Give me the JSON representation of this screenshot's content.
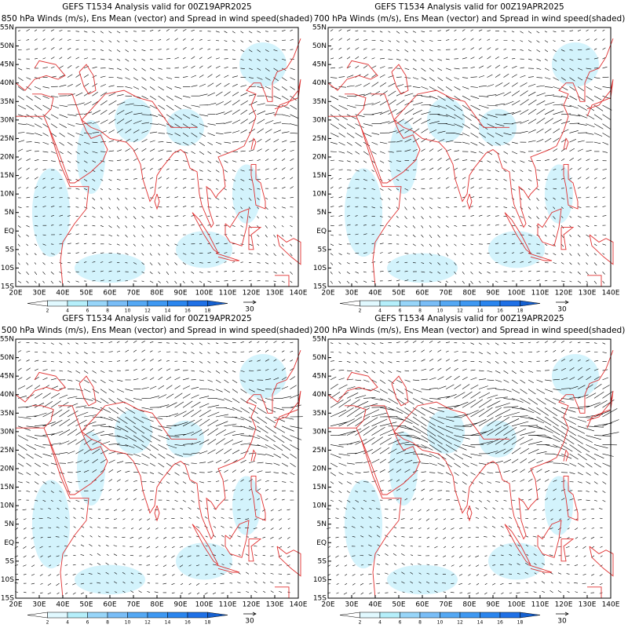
{
  "panels": [
    {
      "title": "GEFS T1534 Analysis valid for 00Z19APR2025",
      "subtitle": "850 hPa Winds (m/s), Ens Mean (vector) and Spread in wind speed(shaded)"
    },
    {
      "title": "GEFS T1534 Analysis valid for 00Z19APR2025",
      "subtitle": "700 hPa Winds (m/s), Ens Mean (vector) and Spread in wind speed(shaded)"
    },
    {
      "title": "GEFS T1534 Analysis valid for 00Z19APR2025",
      "subtitle": "500 hPa Winds (m/s), Ens Mean (vector) and Spread in wind speed(shaded)"
    },
    {
      "title": "GEFS T1534 Analysis valid for 00Z19APR2025",
      "subtitle": "200 hPa Winds (m/s), Ens Mean (vector) and Spread in wind speed(shaded)"
    }
  ],
  "lat_labels": [
    "55N",
    "50N",
    "45N",
    "40N",
    "35N",
    "30N",
    "25N",
    "20N",
    "15N",
    "10N",
    "5N",
    "EQ",
    "5S",
    "10S",
    "15S"
  ],
  "lon_labels": [
    "20E",
    "30E",
    "40E",
    "50E",
    "60E",
    "70E",
    "80E",
    "90E",
    "100E",
    "110E",
    "120E",
    "130E",
    "140E"
  ],
  "colorbar": {
    "labels": [
      "2",
      "4",
      "6",
      "8",
      "10",
      "12",
      "14",
      "16",
      "18"
    ],
    "colors": [
      "#ffffff",
      "#e1f9ff",
      "#b5effb",
      "#97d5f9",
      "#79bdf7",
      "#54a8f4",
      "#3e98f2",
      "#2a85ee",
      "#1f70e6",
      "#1560d0"
    ]
  },
  "reference_vector_label": "30"
}
